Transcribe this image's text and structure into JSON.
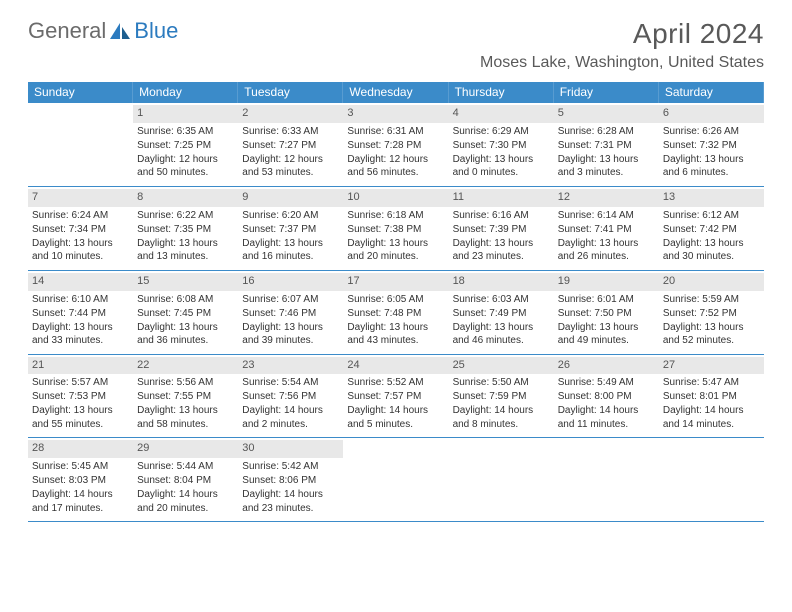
{
  "logo": {
    "part1": "General",
    "part2": "Blue"
  },
  "title": "April 2024",
  "location": "Moses Lake, Washington, United States",
  "colors": {
    "header_bg": "#3b8bc9",
    "header_text": "#ffffff",
    "daynum_bg": "#e8e8e8",
    "row_border": "#3b8bc9",
    "title_color": "#595959",
    "logo_gray": "#6b6b6b",
    "logo_blue": "#2c7bbf",
    "body_text": "#333333"
  },
  "days_of_week": [
    "Sunday",
    "Monday",
    "Tuesday",
    "Wednesday",
    "Thursday",
    "Friday",
    "Saturday"
  ],
  "weeks": [
    [
      {
        "n": "",
        "sunrise": "",
        "sunset": "",
        "daylight": ""
      },
      {
        "n": "1",
        "sunrise": "Sunrise: 6:35 AM",
        "sunset": "Sunset: 7:25 PM",
        "daylight": "Daylight: 12 hours and 50 minutes."
      },
      {
        "n": "2",
        "sunrise": "Sunrise: 6:33 AM",
        "sunset": "Sunset: 7:27 PM",
        "daylight": "Daylight: 12 hours and 53 minutes."
      },
      {
        "n": "3",
        "sunrise": "Sunrise: 6:31 AM",
        "sunset": "Sunset: 7:28 PM",
        "daylight": "Daylight: 12 hours and 56 minutes."
      },
      {
        "n": "4",
        "sunrise": "Sunrise: 6:29 AM",
        "sunset": "Sunset: 7:30 PM",
        "daylight": "Daylight: 13 hours and 0 minutes."
      },
      {
        "n": "5",
        "sunrise": "Sunrise: 6:28 AM",
        "sunset": "Sunset: 7:31 PM",
        "daylight": "Daylight: 13 hours and 3 minutes."
      },
      {
        "n": "6",
        "sunrise": "Sunrise: 6:26 AM",
        "sunset": "Sunset: 7:32 PM",
        "daylight": "Daylight: 13 hours and 6 minutes."
      }
    ],
    [
      {
        "n": "7",
        "sunrise": "Sunrise: 6:24 AM",
        "sunset": "Sunset: 7:34 PM",
        "daylight": "Daylight: 13 hours and 10 minutes."
      },
      {
        "n": "8",
        "sunrise": "Sunrise: 6:22 AM",
        "sunset": "Sunset: 7:35 PM",
        "daylight": "Daylight: 13 hours and 13 minutes."
      },
      {
        "n": "9",
        "sunrise": "Sunrise: 6:20 AM",
        "sunset": "Sunset: 7:37 PM",
        "daylight": "Daylight: 13 hours and 16 minutes."
      },
      {
        "n": "10",
        "sunrise": "Sunrise: 6:18 AM",
        "sunset": "Sunset: 7:38 PM",
        "daylight": "Daylight: 13 hours and 20 minutes."
      },
      {
        "n": "11",
        "sunrise": "Sunrise: 6:16 AM",
        "sunset": "Sunset: 7:39 PM",
        "daylight": "Daylight: 13 hours and 23 minutes."
      },
      {
        "n": "12",
        "sunrise": "Sunrise: 6:14 AM",
        "sunset": "Sunset: 7:41 PM",
        "daylight": "Daylight: 13 hours and 26 minutes."
      },
      {
        "n": "13",
        "sunrise": "Sunrise: 6:12 AM",
        "sunset": "Sunset: 7:42 PM",
        "daylight": "Daylight: 13 hours and 30 minutes."
      }
    ],
    [
      {
        "n": "14",
        "sunrise": "Sunrise: 6:10 AM",
        "sunset": "Sunset: 7:44 PM",
        "daylight": "Daylight: 13 hours and 33 minutes."
      },
      {
        "n": "15",
        "sunrise": "Sunrise: 6:08 AM",
        "sunset": "Sunset: 7:45 PM",
        "daylight": "Daylight: 13 hours and 36 minutes."
      },
      {
        "n": "16",
        "sunrise": "Sunrise: 6:07 AM",
        "sunset": "Sunset: 7:46 PM",
        "daylight": "Daylight: 13 hours and 39 minutes."
      },
      {
        "n": "17",
        "sunrise": "Sunrise: 6:05 AM",
        "sunset": "Sunset: 7:48 PM",
        "daylight": "Daylight: 13 hours and 43 minutes."
      },
      {
        "n": "18",
        "sunrise": "Sunrise: 6:03 AM",
        "sunset": "Sunset: 7:49 PM",
        "daylight": "Daylight: 13 hours and 46 minutes."
      },
      {
        "n": "19",
        "sunrise": "Sunrise: 6:01 AM",
        "sunset": "Sunset: 7:50 PM",
        "daylight": "Daylight: 13 hours and 49 minutes."
      },
      {
        "n": "20",
        "sunrise": "Sunrise: 5:59 AM",
        "sunset": "Sunset: 7:52 PM",
        "daylight": "Daylight: 13 hours and 52 minutes."
      }
    ],
    [
      {
        "n": "21",
        "sunrise": "Sunrise: 5:57 AM",
        "sunset": "Sunset: 7:53 PM",
        "daylight": "Daylight: 13 hours and 55 minutes."
      },
      {
        "n": "22",
        "sunrise": "Sunrise: 5:56 AM",
        "sunset": "Sunset: 7:55 PM",
        "daylight": "Daylight: 13 hours and 58 minutes."
      },
      {
        "n": "23",
        "sunrise": "Sunrise: 5:54 AM",
        "sunset": "Sunset: 7:56 PM",
        "daylight": "Daylight: 14 hours and 2 minutes."
      },
      {
        "n": "24",
        "sunrise": "Sunrise: 5:52 AM",
        "sunset": "Sunset: 7:57 PM",
        "daylight": "Daylight: 14 hours and 5 minutes."
      },
      {
        "n": "25",
        "sunrise": "Sunrise: 5:50 AM",
        "sunset": "Sunset: 7:59 PM",
        "daylight": "Daylight: 14 hours and 8 minutes."
      },
      {
        "n": "26",
        "sunrise": "Sunrise: 5:49 AM",
        "sunset": "Sunset: 8:00 PM",
        "daylight": "Daylight: 14 hours and 11 minutes."
      },
      {
        "n": "27",
        "sunrise": "Sunrise: 5:47 AM",
        "sunset": "Sunset: 8:01 PM",
        "daylight": "Daylight: 14 hours and 14 minutes."
      }
    ],
    [
      {
        "n": "28",
        "sunrise": "Sunrise: 5:45 AM",
        "sunset": "Sunset: 8:03 PM",
        "daylight": "Daylight: 14 hours and 17 minutes."
      },
      {
        "n": "29",
        "sunrise": "Sunrise: 5:44 AM",
        "sunset": "Sunset: 8:04 PM",
        "daylight": "Daylight: 14 hours and 20 minutes."
      },
      {
        "n": "30",
        "sunrise": "Sunrise: 5:42 AM",
        "sunset": "Sunset: 8:06 PM",
        "daylight": "Daylight: 14 hours and 23 minutes."
      },
      {
        "n": "",
        "sunrise": "",
        "sunset": "",
        "daylight": ""
      },
      {
        "n": "",
        "sunrise": "",
        "sunset": "",
        "daylight": ""
      },
      {
        "n": "",
        "sunrise": "",
        "sunset": "",
        "daylight": ""
      },
      {
        "n": "",
        "sunrise": "",
        "sunset": "",
        "daylight": ""
      }
    ]
  ]
}
